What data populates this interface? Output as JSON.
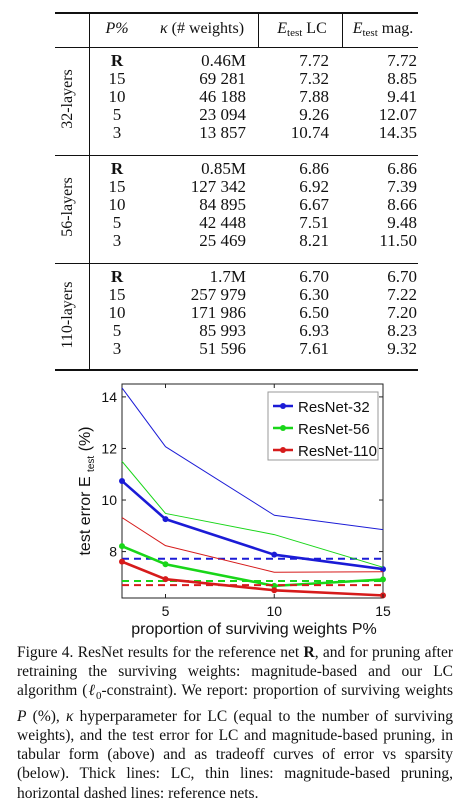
{
  "table": {
    "headers": {
      "p": "P%",
      "kappa_symbol": "κ",
      "kappa_text": "(# weights)",
      "etest_lc_symbol": "E",
      "etest_lc_sub": "test",
      "etest_lc_suffix": "LC",
      "etest_mag_symbol": "E",
      "etest_mag_sub": "test",
      "etest_mag_suffix": "mag."
    },
    "groups": [
      {
        "label": "32-layers",
        "rows": [
          {
            "p": "R",
            "kappa": "0.46M",
            "lc": "7.72",
            "mag": "7.72"
          },
          {
            "p": "15",
            "kappa": "69 281",
            "lc": "7.32",
            "mag": "8.85"
          },
          {
            "p": "10",
            "kappa": "46 188",
            "lc": "7.88",
            "mag": "9.41"
          },
          {
            "p": "5",
            "kappa": "23 094",
            "lc": "9.26",
            "mag": "12.07"
          },
          {
            "p": "3",
            "kappa": "13 857",
            "lc": "10.74",
            "mag": "14.35"
          }
        ]
      },
      {
        "label": "56-layers",
        "rows": [
          {
            "p": "R",
            "kappa": "0.85M",
            "lc": "6.86",
            "mag": "6.86"
          },
          {
            "p": "15",
            "kappa": "127 342",
            "lc": "6.92",
            "mag": "7.39"
          },
          {
            "p": "10",
            "kappa": "84 895",
            "lc": "6.67",
            "mag": "8.66"
          },
          {
            "p": "5",
            "kappa": "42 448",
            "lc": "7.51",
            "mag": "9.48"
          },
          {
            "p": "3",
            "kappa": "25 469",
            "lc": "8.21",
            "mag": "11.50"
          }
        ]
      },
      {
        "label": "110-layers",
        "rows": [
          {
            "p": "R",
            "kappa": "1.7M",
            "lc": "6.70",
            "mag": "6.70"
          },
          {
            "p": "15",
            "kappa": "257 979",
            "lc": "6.30",
            "mag": "7.22"
          },
          {
            "p": "10",
            "kappa": "171 986",
            "lc": "6.50",
            "mag": "7.20"
          },
          {
            "p": "5",
            "kappa": "85 993",
            "lc": "6.93",
            "mag": "8.23"
          },
          {
            "p": "3",
            "kappa": "51 596",
            "lc": "7.61",
            "mag": "9.32"
          }
        ]
      }
    ]
  },
  "chart_data": {
    "type": "line",
    "xlabel": "proportion of surviving weights P%",
    "ylabel": "test error E_test (%)",
    "ylabel_main": "test error E",
    "ylabel_sub": "test",
    "ylabel_unit": "(%)",
    "xlim": [
      3,
      15
    ],
    "ylim": [
      6.2,
      14.5
    ],
    "xticks": [
      5,
      10,
      15
    ],
    "yticks": [
      8,
      10,
      12,
      14
    ],
    "x": [
      3,
      5,
      10,
      15
    ],
    "grid": false,
    "legend_position": "top-right",
    "series": [
      {
        "name": "ResNet-32",
        "color": "#1b1bd6",
        "lc": [
          10.74,
          9.26,
          7.88,
          7.32
        ],
        "mag": [
          14.35,
          12.07,
          9.41,
          8.85
        ],
        "reference": 7.72
      },
      {
        "name": "ResNet-56",
        "color": "#19d619",
        "lc": [
          8.21,
          7.51,
          6.67,
          6.92
        ],
        "mag": [
          11.5,
          9.48,
          8.66,
          7.39
        ],
        "reference": 6.86
      },
      {
        "name": "ResNet-110",
        "color": "#d61b1b",
        "lc": [
          7.61,
          6.93,
          6.5,
          6.3
        ],
        "mag": [
          9.32,
          8.23,
          7.2,
          7.22
        ],
        "reference": 6.7
      }
    ]
  },
  "caption": {
    "figure_label": "Figure 4.",
    "text_1": " ResNet results for the reference net ",
    "bold_R": "R",
    "text_2": ", and for pruning after retraining the surviving weights: magnitude-based and our LC algorithm (",
    "ell": "ℓ",
    "ell_sub": "0",
    "text_3": "-constraint). We report: proportion of surviving weights ",
    "italic_P": "P",
    "text_4": " (%), ",
    "kappa": "κ",
    "text_5": " hyperparameter for LC (equal to the number of surviving weights), and the test error for LC and magnitude-based pruning, in tabular form (above) and as tradeoff curves of error vs sparsity (below). Thick lines: LC, thin lines: magnitude-based pruning, horizontal dashed lines: reference nets."
  }
}
